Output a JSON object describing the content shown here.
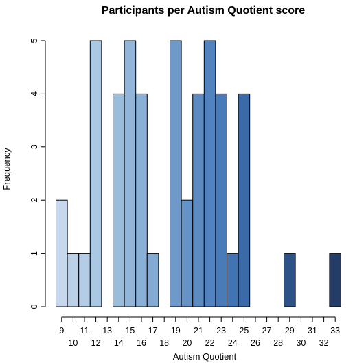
{
  "chart_data": {
    "type": "bar",
    "title": "Participants per Autism Quotient score",
    "xlabel": "Autism Quotient",
    "ylabel": "Frequency",
    "categories": [
      "9",
      "10",
      "11",
      "12",
      "13",
      "14",
      "15",
      "16",
      "17",
      "18",
      "19",
      "20",
      "21",
      "22",
      "23",
      "24",
      "25",
      "26",
      "27",
      "28",
      "29",
      "30",
      "31",
      "32",
      "33"
    ],
    "values": [
      2,
      1,
      1,
      5,
      0,
      4,
      5,
      4,
      1,
      0,
      5,
      2,
      4,
      5,
      4,
      1,
      4,
      0,
      0,
      0,
      1,
      0,
      0,
      0,
      1
    ],
    "colors": [
      "#c6d7ee",
      "#bbd1e8",
      "#b4cde6",
      "#abc8e3",
      "#a3c2df",
      "#9bbddc",
      "#93b6d8",
      "#8bb0d6",
      "#83aad2",
      "#7ba3ce",
      "#6e99c9",
      "#6593c6",
      "#5c8bc2",
      "#5383be",
      "#4a7bb9",
      "#4274b3",
      "#3a6aa8",
      "#36649f",
      "#335e96",
      "#30588e",
      "#2d5288",
      "#2b4d80",
      "#294878",
      "#264371",
      "#233d67"
    ],
    "ylim": [
      0,
      5
    ],
    "yticks": [
      0,
      1,
      2,
      3,
      4,
      5
    ],
    "grid": false,
    "legend": "none"
  }
}
